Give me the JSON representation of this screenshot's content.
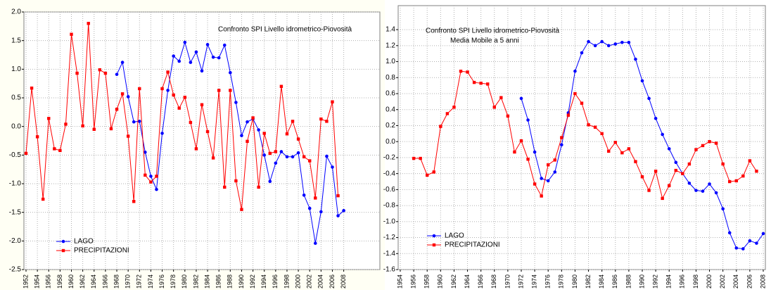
{
  "chart_data": [
    {
      "type": "line",
      "title": "Confronto SPI Livello idrometrico-Piovosità",
      "x": [
        1952,
        1953,
        1954,
        1955,
        1956,
        1957,
        1958,
        1959,
        1960,
        1961,
        1962,
        1963,
        1964,
        1965,
        1966,
        1967,
        1968,
        1969,
        1970,
        1971,
        1972,
        1973,
        1974,
        1975,
        1976,
        1977,
        1978,
        1979,
        1980,
        1981,
        1982,
        1983,
        1984,
        1985,
        1986,
        1987,
        1988,
        1989,
        1990,
        1991,
        1992,
        1993,
        1994,
        1995,
        1996,
        1997,
        1998,
        1999,
        2000,
        2001,
        2002,
        2003,
        2004,
        2005,
        2006,
        2007,
        2008
      ],
      "series": [
        {
          "name": "LAGO",
          "color": "#0000ff",
          "marker": "circle",
          "values": [
            null,
            null,
            null,
            null,
            null,
            null,
            null,
            null,
            null,
            null,
            null,
            null,
            null,
            null,
            null,
            null,
            0.91,
            1.12,
            0.52,
            0.08,
            0.09,
            -0.45,
            -0.87,
            -1.1,
            -0.12,
            0.63,
            1.23,
            1.14,
            1.47,
            1.12,
            1.3,
            0.97,
            1.43,
            1.21,
            1.2,
            1.42,
            0.94,
            0.42,
            -0.16,
            0.08,
            0.13,
            -0.06,
            -0.5,
            -0.96,
            -0.64,
            -0.44,
            -0.53,
            -0.53,
            -0.46,
            -1.2,
            -1.43,
            -2.04,
            -1.49,
            -0.52,
            -0.71,
            -1.56,
            -1.47
          ]
        },
        {
          "name": "PRECIPITAZIONI",
          "color": "#ff0000",
          "marker": "square",
          "values": [
            -0.47,
            0.67,
            -0.18,
            -1.27,
            0.14,
            -0.39,
            -0.42,
            0.04,
            1.61,
            0.93,
            0.01,
            1.8,
            -0.05,
            0.99,
            0.93,
            -0.04,
            0.3,
            0.57,
            -0.17,
            -1.31,
            0.66,
            -0.85,
            -0.97,
            -0.87,
            0.66,
            0.95,
            0.55,
            0.32,
            0.51,
            0.07,
            -0.39,
            0.38,
            -0.09,
            -0.55,
            0.63,
            -1.06,
            0.63,
            -0.95,
            -1.45,
            -0.26,
            0.15,
            -1.06,
            -0.12,
            -0.47,
            -0.44,
            0.7,
            -0.13,
            0.09,
            -0.22,
            -0.53,
            -0.6,
            -1.25,
            0.13,
            0.09,
            0.43,
            -1.21,
            null
          ]
        }
      ],
      "xlim": [
        1952,
        2014
      ],
      "ylim": [
        -2.5,
        2.0
      ],
      "xticks": [
        1952,
        1954,
        1956,
        1958,
        1960,
        1962,
        1964,
        1966,
        1968,
        1970,
        1972,
        1974,
        1976,
        1978,
        1980,
        1982,
        1984,
        1986,
        1988,
        1990,
        1992,
        1994,
        1996,
        1998,
        2000,
        2002,
        2004,
        2006,
        2008
      ],
      "yticks": [
        {
          "value": 2.0,
          "label": "2.0"
        },
        1.5,
        {
          "value": 1.0,
          "label": "1.0"
        },
        0.5,
        {
          "value": 0.0,
          "label": "0.0"
        },
        -0.5,
        {
          "value": -1.0,
          "label": "-1.0"
        },
        -1.5,
        {
          "value": -2.0,
          "label": "-2.0"
        },
        -2.5
      ],
      "grid": true,
      "legend": "lower left"
    },
    {
      "type": "line",
      "title": "Confronto SPI Livello idrometrico-Piovosità",
      "subtitle": "Media Mobile a 5 anni",
      "x": [
        1954,
        1955,
        1956,
        1957,
        1958,
        1959,
        1960,
        1961,
        1962,
        1963,
        1964,
        1965,
        1966,
        1967,
        1968,
        1969,
        1970,
        1971,
        1972,
        1973,
        1974,
        1975,
        1976,
        1977,
        1978,
        1979,
        1980,
        1981,
        1982,
        1983,
        1984,
        1985,
        1986,
        1987,
        1988,
        1989,
        1990,
        1991,
        1992,
        1993,
        1994,
        1995,
        1996,
        1997,
        1998,
        1999,
        2000,
        2001,
        2002,
        2003,
        2004,
        2005,
        2006,
        2007,
        2008
      ],
      "series": [
        {
          "name": "LAGO",
          "color": "#0000ff",
          "marker": "circle",
          "values": [
            null,
            null,
            null,
            null,
            null,
            null,
            null,
            null,
            null,
            null,
            null,
            null,
            null,
            null,
            null,
            null,
            null,
            null,
            0.54,
            0.27,
            -0.13,
            -0.46,
            -0.49,
            -0.38,
            -0.04,
            0.36,
            0.88,
            1.11,
            1.25,
            1.2,
            1.25,
            1.2,
            1.22,
            1.24,
            1.24,
            1.03,
            0.76,
            0.54,
            0.29,
            0.09,
            -0.09,
            -0.26,
            -0.4,
            -0.52,
            -0.61,
            -0.62,
            -0.53,
            -0.64,
            -0.84,
            -1.14,
            -1.33,
            -1.34,
            -1.24,
            -1.27,
            -1.15
          ]
        },
        {
          "name": "PRECIPITAZIONI",
          "color": "#ff0000",
          "marker": "square",
          "values": [
            null,
            null,
            -0.21,
            -0.21,
            -0.42,
            -0.38,
            0.19,
            0.35,
            0.43,
            0.88,
            0.87,
            0.74,
            0.73,
            0.72,
            0.43,
            0.55,
            0.32,
            -0.13,
            0.01,
            -0.22,
            -0.53,
            -0.68,
            -0.29,
            -0.23,
            0.05,
            0.33,
            0.6,
            0.48,
            0.21,
            0.18,
            0.1,
            -0.12,
            -0.01,
            -0.14,
            -0.09,
            -0.25,
            -0.44,
            -0.61,
            -0.37,
            -0.71,
            -0.55,
            -0.36,
            -0.4,
            -0.28,
            -0.1,
            -0.05,
            0.0,
            -0.02,
            -0.28,
            -0.5,
            -0.49,
            -0.43,
            -0.24,
            -0.37,
            null
          ]
        }
      ],
      "xlim": [
        1954,
        2008
      ],
      "ylim": [
        -1.6,
        1.7
      ],
      "xticks": [
        1954,
        1956,
        1958,
        1960,
        1962,
        1964,
        1966,
        1968,
        1970,
        1972,
        1974,
        1976,
        1978,
        1980,
        1982,
        1984,
        1986,
        1988,
        1990,
        1992,
        1994,
        1996,
        1998,
        2000,
        2002,
        2004,
        2006,
        2008
      ],
      "yticks": [
        1.4,
        1.2,
        {
          "value": 1.0,
          "label": "1.0"
        },
        0.8,
        0.6,
        0.4,
        0.2,
        {
          "value": 0.0,
          "label": "0.0"
        },
        -0.2,
        -0.4,
        -0.6,
        -0.8,
        {
          "value": -1.0,
          "label": "-1.0"
        },
        -1.2,
        -1.4,
        -1.6
      ],
      "grid": true,
      "legend": "lower left"
    }
  ]
}
